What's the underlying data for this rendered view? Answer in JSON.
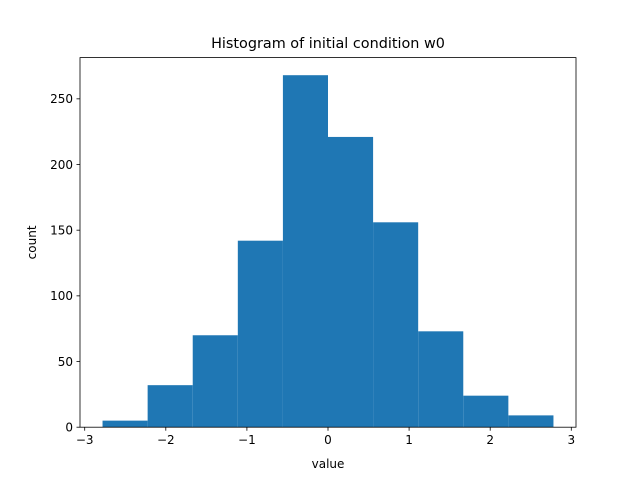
{
  "chart_data": {
    "type": "bar",
    "subtype": "histogram",
    "title": "Histogram of initial condition w0",
    "xlabel": "value",
    "ylabel": "count",
    "bin_edges": [
      -2.78,
      -2.224,
      -1.668,
      -1.112,
      -0.556,
      0.0,
      0.556,
      1.112,
      1.668,
      2.224,
      2.78
    ],
    "counts": [
      5,
      32,
      70,
      142,
      268,
      221,
      156,
      73,
      24,
      9
    ],
    "xlim": [
      -3.058,
      3.058
    ],
    "ylim": [
      0,
      281.4
    ],
    "xticks": [
      -3,
      -2,
      -1,
      0,
      1,
      2,
      3
    ],
    "xtick_labels": [
      "−3",
      "−2",
      "−1",
      "0",
      "1",
      "2",
      "3"
    ],
    "yticks": [
      0,
      50,
      100,
      150,
      200,
      250
    ],
    "ytick_labels": [
      "0",
      "50",
      "100",
      "150",
      "200",
      "250"
    ],
    "bar_color": "#1f77b4",
    "grid": false,
    "legend": "none"
  }
}
